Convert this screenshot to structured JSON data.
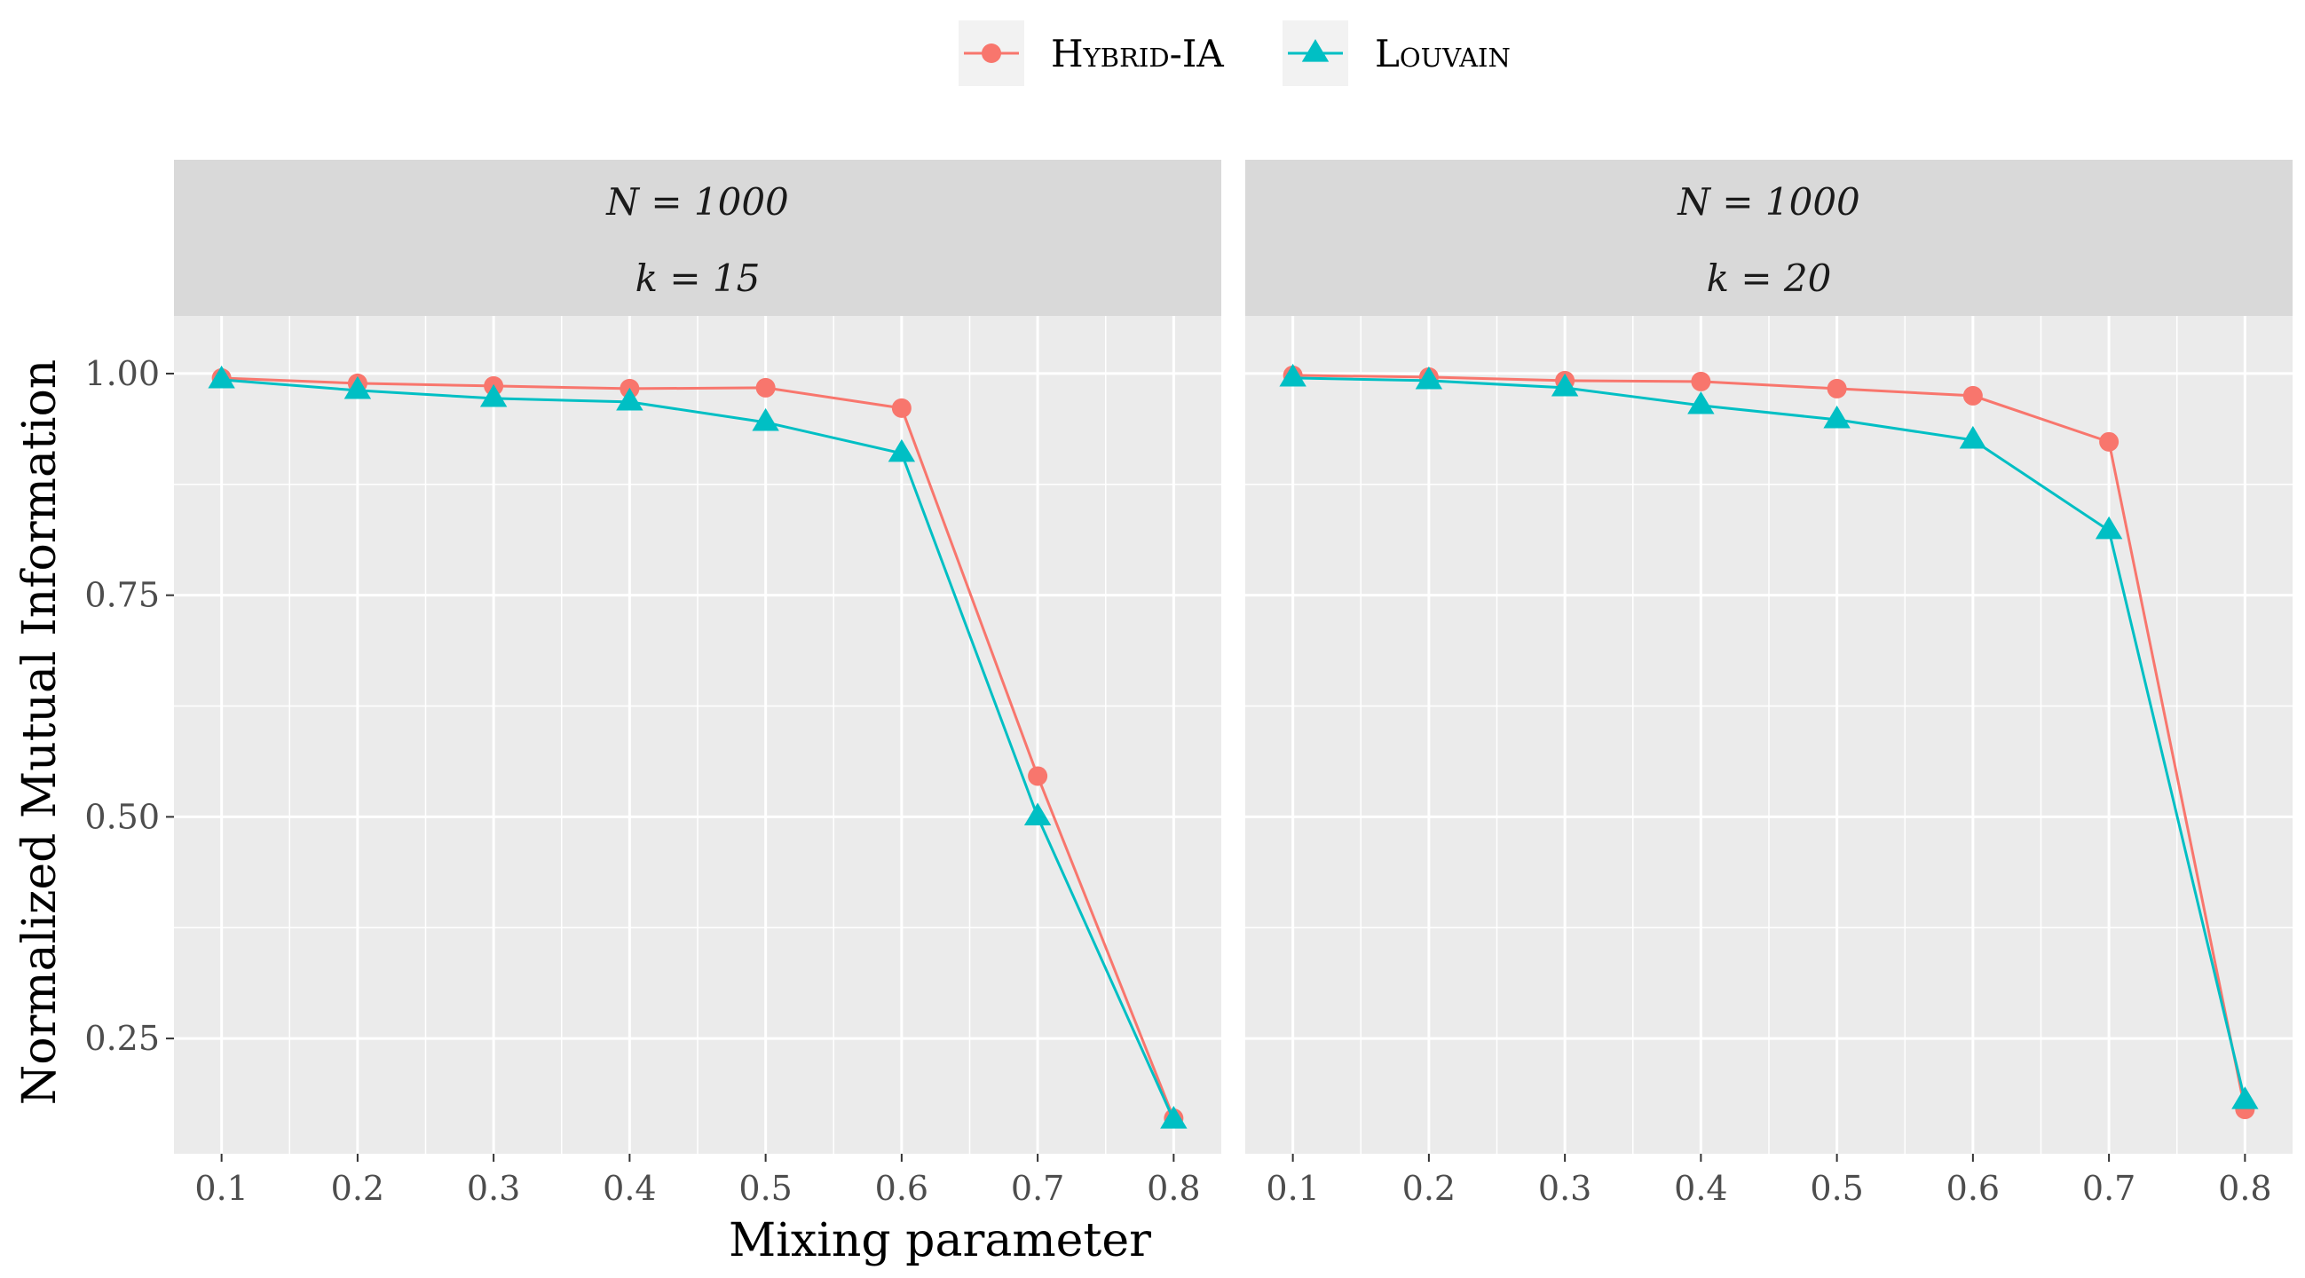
{
  "chart_data": {
    "type": "line",
    "xlabel": "Mixing parameter",
    "ylabel": "Normalized Mutual Information",
    "legend_position": "top",
    "grid": true,
    "x_ticks": [
      "0.1",
      "0.2",
      "0.3",
      "0.4",
      "0.5",
      "0.6",
      "0.7",
      "0.8"
    ],
    "y_ticks": [
      "0.25",
      "0.50",
      "0.75",
      "1.00"
    ],
    "xlim": [
      0.065,
      0.835
    ],
    "ylim": [
      0.12,
      1.065
    ],
    "colors": {
      "Hybrid-IA": "#F8766D",
      "Louvain": "#00BFC4"
    },
    "legend": [
      {
        "name": "Hybrid-IA",
        "marker": "circle"
      },
      {
        "name": "Louvain",
        "marker": "triangle"
      }
    ],
    "panels": [
      {
        "strip": [
          "N = 1000",
          "k = 15"
        ],
        "x": [
          0.1,
          0.2,
          0.3,
          0.4,
          0.5,
          0.6,
          0.7,
          0.8
        ],
        "series": [
          {
            "name": "Hybrid-IA",
            "values": [
              0.995,
              0.989,
              0.986,
              0.983,
              0.984,
              0.961,
              0.546,
              0.16
            ]
          },
          {
            "name": "Louvain",
            "values": [
              0.993,
              0.981,
              0.972,
              0.968,
              0.945,
              0.91,
              0.5,
              0.158
            ]
          }
        ]
      },
      {
        "strip": [
          "N = 1000",
          "k = 20"
        ],
        "x": [
          0.1,
          0.2,
          0.3,
          0.4,
          0.5,
          0.6,
          0.7,
          0.8
        ],
        "series": [
          {
            "name": "Hybrid-IA",
            "values": [
              0.998,
              0.996,
              0.992,
              0.991,
              0.983,
              0.975,
              0.923,
              0.17
            ]
          },
          {
            "name": "Louvain",
            "values": [
              0.995,
              0.992,
              0.984,
              0.964,
              0.948,
              0.925,
              0.823,
              0.18
            ]
          }
        ]
      }
    ]
  }
}
